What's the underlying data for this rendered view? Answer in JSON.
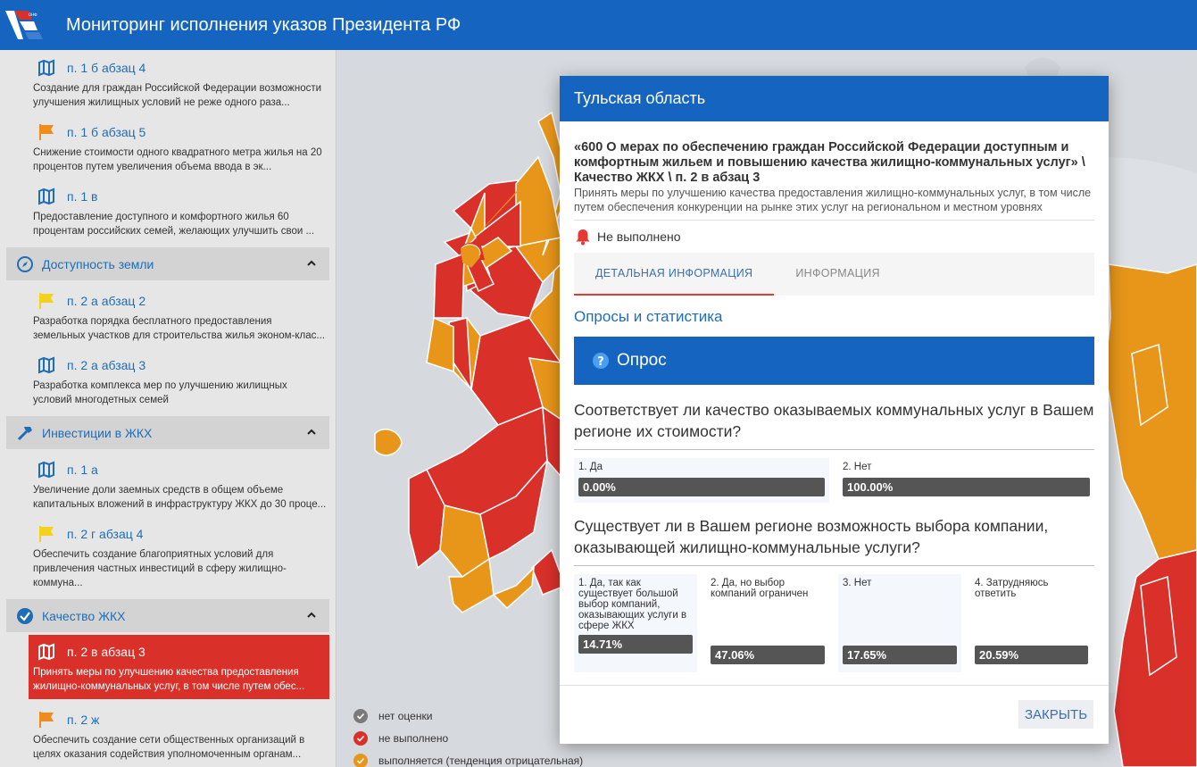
{
  "header": {
    "title": "Мониторинг исполнения указов Президента РФ"
  },
  "sidebar": {
    "items_top": [
      {
        "code": "п. 1 б абзац 4",
        "desc": "Создание для граждан Российской Федерации возможности улучшения жилищных условий не реже одного раза...",
        "icon": "map-icon",
        "color": "#1f6db5"
      },
      {
        "code": "п. 1 б абзац 5",
        "desc": "Снижение стоимости одного квадратного метра жилья на 20 процентов путем увеличения объема ввода в эк...",
        "icon": "flag-icon",
        "color": "#f08c1e"
      },
      {
        "code": "п. 1 в",
        "desc": "Предоставление доступного и комфортного жилья 60 процентам российских семей, желающих улучшить свои ...",
        "icon": "map-icon",
        "color": "#1f6db5"
      }
    ],
    "section_land": {
      "label": "Доступность земли",
      "icon": "compass-icon"
    },
    "items_land": [
      {
        "code": "п. 2 а абзац 2",
        "desc": "Разработка порядка бесплатного предоставления земельных участков для строительства жилья эконом-клас...",
        "icon": "flag-icon",
        "color": "#f2d21a"
      },
      {
        "code": "п. 2 а абзац 3",
        "desc": "Разработка комплекса мер по улучшению жилищных условий многодетных семей",
        "icon": "map-icon",
        "color": "#1f6db5"
      }
    ],
    "section_invest": {
      "label": "Инвестиции в ЖКХ",
      "icon": "hammer-icon"
    },
    "items_invest": [
      {
        "code": "п. 1 а",
        "desc": "Увеличение доли заемных средств в общем объеме капитальных вложений в инфраструктуру ЖКХ до 30 проце...",
        "icon": "map-icon",
        "color": "#1f6db5"
      },
      {
        "code": "п. 2 г абзац 4",
        "desc": "Обеспечить создание благоприятных условий для привлечения частных инвестиций в сферу жилищно-коммуна...",
        "icon": "flag-icon",
        "color": "#f2d21a"
      }
    ],
    "section_quality": {
      "label": "Качество ЖКХ",
      "icon": "check-circle-icon"
    },
    "items_quality": [
      {
        "code": "п. 2 в абзац 3",
        "desc": "Принять меры по улучшению качества предоставления жилищно-коммунальных услуг, в том числе путем обес...",
        "icon": "map-icon",
        "color": "#ffffff",
        "active": true
      },
      {
        "code": "п. 2 ж",
        "desc": "Обеспечить создание сети общественных организаций в целях оказания содействия уполномоченным органам...",
        "icon": "flag-icon",
        "color": "#f08c1e"
      }
    ]
  },
  "legend": [
    {
      "label": "нет оценки",
      "color": "#7a7a7a"
    },
    {
      "label": "не выполнено",
      "color": "#d9302a"
    },
    {
      "label": "выполняется (тенденция отрицательная)",
      "color": "#e8961a"
    }
  ],
  "modal": {
    "region": "Тульская область",
    "title": "«600 О мерах по обеспечению граждан Российской Федерации доступным и комфортным жильем и повышению качества жилищно-коммунальных услуг» \\ Качество ЖКХ \\ п. 2 в абзац 3",
    "subtitle": "Принять меры по улучшению качества предоставления жилищно-коммунальных услуг, в том числе путем обеспечения конкуренции на рынке этих услуг на региональном и местном уровнях",
    "status": "Не выполнено",
    "status_color": "#e53935",
    "tabs": [
      "ДЕТАЛЬНАЯ ИНФОРМАЦИЯ",
      "ИНФОРМАЦИЯ"
    ],
    "section_title": "Опросы и статистика",
    "poll_label": "Опрос",
    "q1": {
      "text": "Соответствует ли качество оказываемых коммунальных услуг в Вашем регионе их стоимости?",
      "answers": [
        {
          "label": "1. Да",
          "value": "0.00%"
        },
        {
          "label": "2. Нет",
          "value": "100.00%"
        }
      ]
    },
    "q2": {
      "text": "Существует ли в Вашем регионе возможность выбора компании, оказывающей жилищно-коммунальные услуги?",
      "answers": [
        {
          "label": "1. Да, так как существует большой выбор компаний, оказывающих услуги в сфере ЖКХ",
          "value": "14.71%"
        },
        {
          "label": "2. Да, но выбор компаний ограничен",
          "value": "47.06%"
        },
        {
          "label": "3. Нет",
          "value": "17.65%"
        },
        {
          "label": "4. Затрудняюсь ответить",
          "value": "20.59%"
        }
      ]
    },
    "close_label": "ЗАКРЫТЬ"
  }
}
